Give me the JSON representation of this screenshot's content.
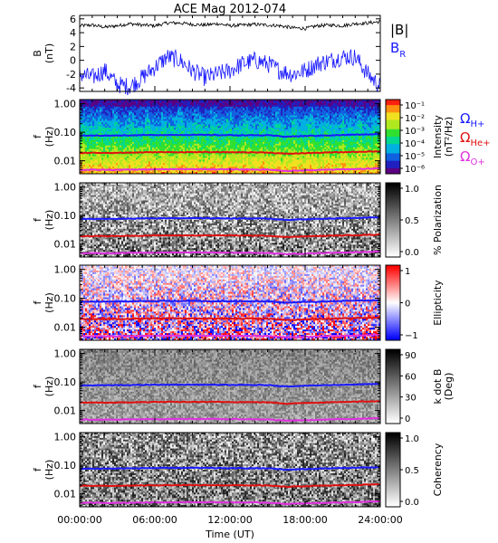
{
  "chart_data": {
    "type": "line",
    "title": "ACE Mag 2012-074",
    "xlabel": "Time (UT)",
    "x_ticks": [
      "00:00:00",
      "06:00:00",
      "12:00:00",
      "18:00:00",
      "24:00:00"
    ],
    "xlim_hours": [
      0,
      24
    ],
    "panels": [
      {
        "id": "field",
        "ylabel": [
          "B",
          "(nT)"
        ],
        "y_ticks": [
          "6",
          "4",
          "2",
          "0",
          "-2",
          "-4"
        ],
        "ylim": [
          -4.5,
          6.5
        ],
        "legend": [
          {
            "label": "|B|",
            "color": "#000000"
          },
          {
            "label": "B",
            "sub": "R",
            "color": "#1a1aff"
          }
        ],
        "series": [
          {
            "name": "|B|",
            "color": "#000000",
            "x": [
              0,
              1,
              2,
              3,
              4,
              5,
              6,
              7,
              8,
              9,
              10,
              11,
              12,
              13,
              14,
              15,
              16,
              17,
              18,
              19,
              20,
              21,
              22,
              23,
              24
            ],
            "y": [
              5.0,
              5.1,
              4.8,
              5.0,
              5.3,
              5.1,
              5.0,
              5.4,
              5.4,
              5.2,
              5.1,
              5.3,
              5.0,
              5.1,
              5.2,
              5.1,
              5.0,
              4.7,
              4.6,
              5.0,
              5.1,
              5.0,
              5.3,
              5.4,
              5.6
            ]
          },
          {
            "name": "B_R",
            "color": "#1a1aff",
            "x": [
              0,
              1,
              2,
              3,
              4,
              5,
              6,
              7,
              8,
              9,
              10,
              11,
              12,
              13,
              14,
              15,
              16,
              17,
              18,
              19,
              20,
              21,
              22,
              23,
              24
            ],
            "y": [
              -2.0,
              -2.5,
              -1.5,
              -3.5,
              -3.8,
              -2.5,
              -1.0,
              0.5,
              0.0,
              -1.5,
              -2.5,
              -2.0,
              -1.5,
              -0.5,
              0.0,
              -0.5,
              -1.5,
              -2.0,
              -1.5,
              -0.5,
              0.0,
              0.5,
              0.5,
              -2.0,
              -3.8
            ]
          }
        ]
      },
      {
        "id": "intensity",
        "ylabel": [
          "f",
          "(Hz)"
        ],
        "y_ticks": [
          "1.00",
          "0.10",
          "0.01"
        ],
        "colorbar": {
          "ticks": [
            "10⁻¹",
            "10⁻²",
            "10⁻³",
            "10⁻⁴",
            "10⁻⁵",
            "10⁻⁶"
          ],
          "label": [
            "Intensity",
            "(nT²/Hz)"
          ],
          "scheme": "rainbow"
        },
        "gyro_legend": [
          {
            "label": "Ω",
            "sub": "H+",
            "color": "#1a1aff"
          },
          {
            "label": "Ω",
            "sub": "He+",
            "color": "#e01010"
          },
          {
            "label": "Ω",
            "sub": "O+",
            "color": "#e030e0"
          }
        ]
      },
      {
        "id": "polarization",
        "ylabel": [
          "f",
          "(Hz)"
        ],
        "y_ticks": [
          "1.00",
          "0.10",
          "0.01"
        ],
        "colorbar": {
          "ticks": [
            "1.0",
            "0.5",
            "0.0"
          ],
          "label": [
            "% Polarization"
          ],
          "scheme": "gray"
        }
      },
      {
        "id": "ellipticity",
        "ylabel": [
          "f",
          "(Hz)"
        ],
        "y_ticks": [
          "1.00",
          "0.10",
          "0.01"
        ],
        "colorbar": {
          "ticks": [
            "1",
            "0",
            "−1"
          ],
          "label": [
            "Ellipticity"
          ],
          "scheme": "bwr"
        }
      },
      {
        "id": "wave_normal",
        "ylabel": [
          "f",
          "(Hz)"
        ],
        "y_ticks": [
          "1.00",
          "0.10",
          "0.01"
        ],
        "colorbar": {
          "ticks": [
            "90",
            "60",
            "30",
            "0"
          ],
          "label": [
            "k dot B",
            "(Deg)"
          ],
          "scheme": "gray"
        }
      },
      {
        "id": "coherency",
        "ylabel": [
          "f",
          "(Hz)"
        ],
        "y_ticks": [
          "1.00",
          "0.10",
          "0.01"
        ],
        "colorbar": {
          "ticks": [
            "1.0",
            "0.5",
            "0.0"
          ],
          "label": [
            "Coherency"
          ],
          "scheme": "gray"
        }
      }
    ],
    "gyrofrequency_series": [
      {
        "name": "Ω H+",
        "color": "#1a1aff",
        "x": [
          0,
          3,
          6,
          9,
          12,
          15,
          16.5,
          18,
          21,
          24
        ],
        "y": [
          0.076,
          0.077,
          0.08,
          0.081,
          0.079,
          0.078,
          0.07,
          0.074,
          0.08,
          0.086
        ]
      },
      {
        "name": "Ω He+",
        "color": "#e01010",
        "x": [
          0,
          3,
          6,
          9,
          12,
          15,
          16.5,
          18,
          21,
          24
        ],
        "y": [
          0.019,
          0.019,
          0.02,
          0.02,
          0.02,
          0.0195,
          0.0175,
          0.0185,
          0.02,
          0.0215
        ]
      },
      {
        "name": "Ω O+",
        "color": "#e030e0",
        "x": [
          0,
          3,
          6,
          9,
          12,
          15,
          16.5,
          18,
          21,
          24
        ],
        "y": [
          0.0048,
          0.0048,
          0.005,
          0.0051,
          0.005,
          0.0049,
          0.0044,
          0.0046,
          0.005,
          0.0054
        ]
      }
    ]
  }
}
